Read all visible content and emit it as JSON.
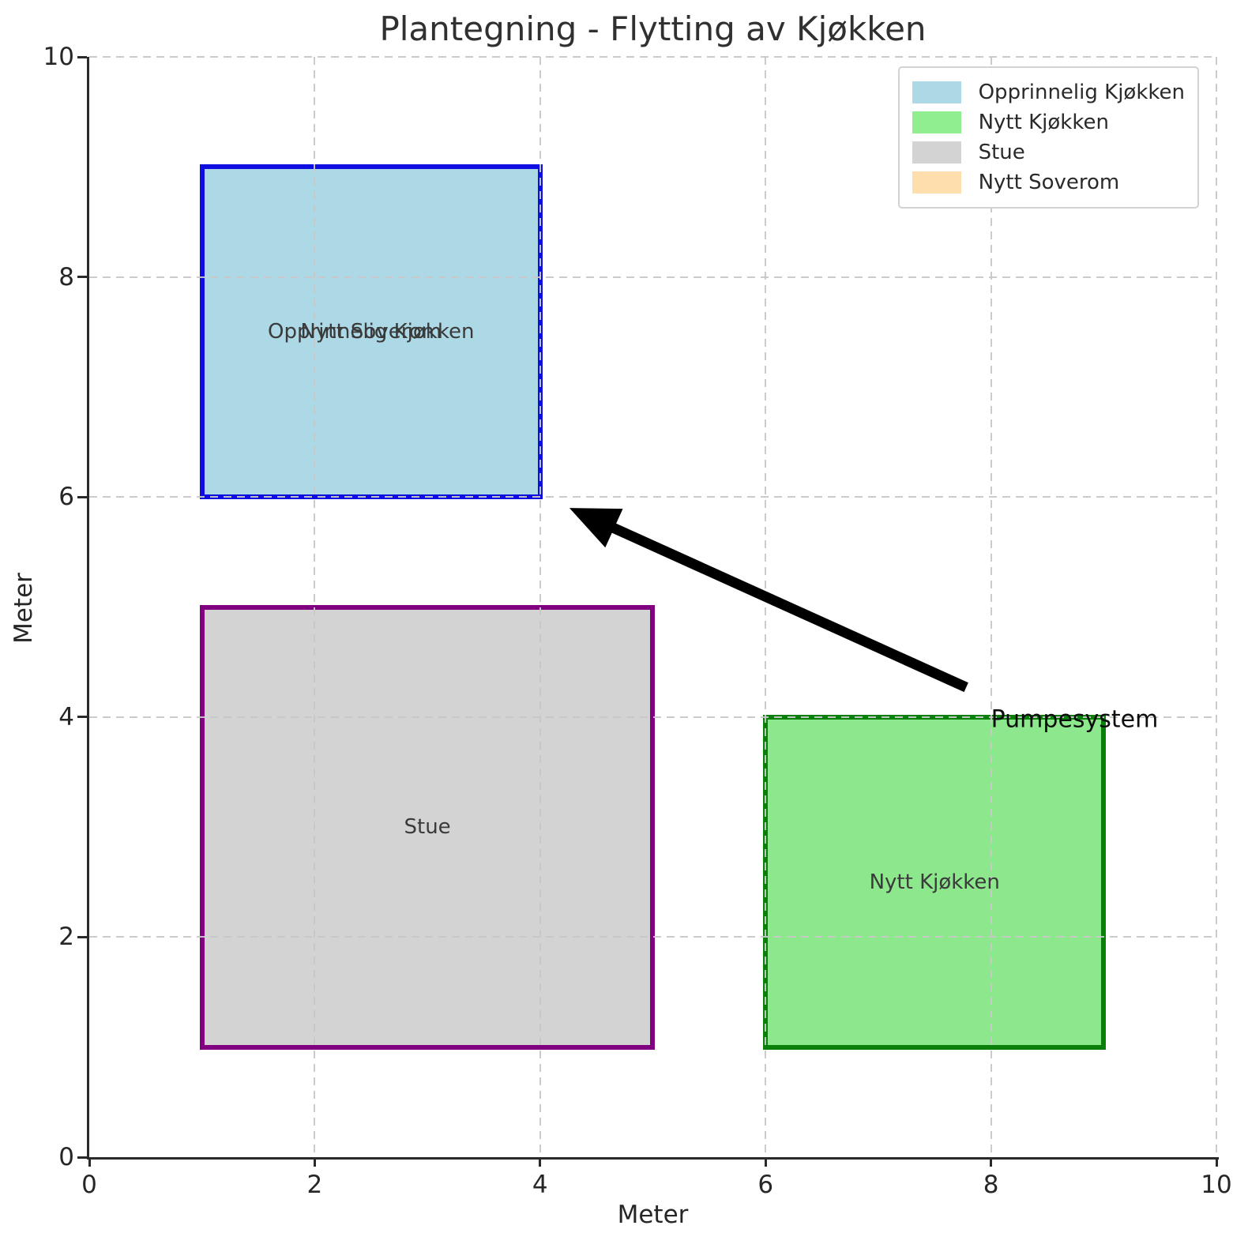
{
  "chart_data": {
    "type": "floorplan",
    "title": "Plantegning - Flytting av Kjøkken",
    "xlabel": "Meter",
    "ylabel": "Meter",
    "xlim": [
      0,
      10
    ],
    "ylim": [
      0,
      10
    ],
    "xticks": [
      0,
      2,
      4,
      6,
      8,
      10
    ],
    "yticks": [
      0,
      2,
      4,
      6,
      8,
      10
    ],
    "grid": true,
    "grid_style": "dashed",
    "grid_color": "#c8c8c8",
    "rooms": [
      {
        "id": "nytt-soverom",
        "label": "Nytt Soverom",
        "x": 1,
        "y": 6,
        "w": 3,
        "h": 3,
        "fill": "transparent",
        "edge": "transparent",
        "edge_width": 0
      },
      {
        "id": "opprinnelig-kjokken",
        "label": "Opprinnelig Kjøkken",
        "x": 1,
        "y": 6,
        "w": 3,
        "h": 3,
        "fill": "#ADD8E6",
        "edge": "#0E0EE0",
        "edge_width": 6
      },
      {
        "id": "stue",
        "label": "Stue",
        "x": 1,
        "y": 1,
        "w": 4,
        "h": 4,
        "fill": "#D3D3D3",
        "edge": "#800080",
        "edge_width": 6
      },
      {
        "id": "nytt-kjokken",
        "label": "Nytt Kjøkken",
        "x": 6,
        "y": 1,
        "w": 3,
        "h": 3,
        "fill": "#8DE78D",
        "edge": "#0A7F0A",
        "edge_width": 6
      }
    ],
    "annotation": {
      "text": "Pumpesystem",
      "text_pos": [
        8.0,
        3.98
      ],
      "arrow_from": [
        7.78,
        4.27
      ],
      "arrow_to": [
        4.26,
        5.9
      ],
      "arrow_color": "#000000"
    },
    "legend": {
      "position": "upper right",
      "entries": [
        {
          "label": "Opprinnelig Kjøkken",
          "color": "#ADD8E6"
        },
        {
          "label": "Nytt Kjøkken",
          "color": "#90EE90"
        },
        {
          "label": "Stue",
          "color": "#D3D3D3"
        },
        {
          "label": "Nytt Soverom",
          "color": "#FFDEAD"
        }
      ]
    }
  }
}
